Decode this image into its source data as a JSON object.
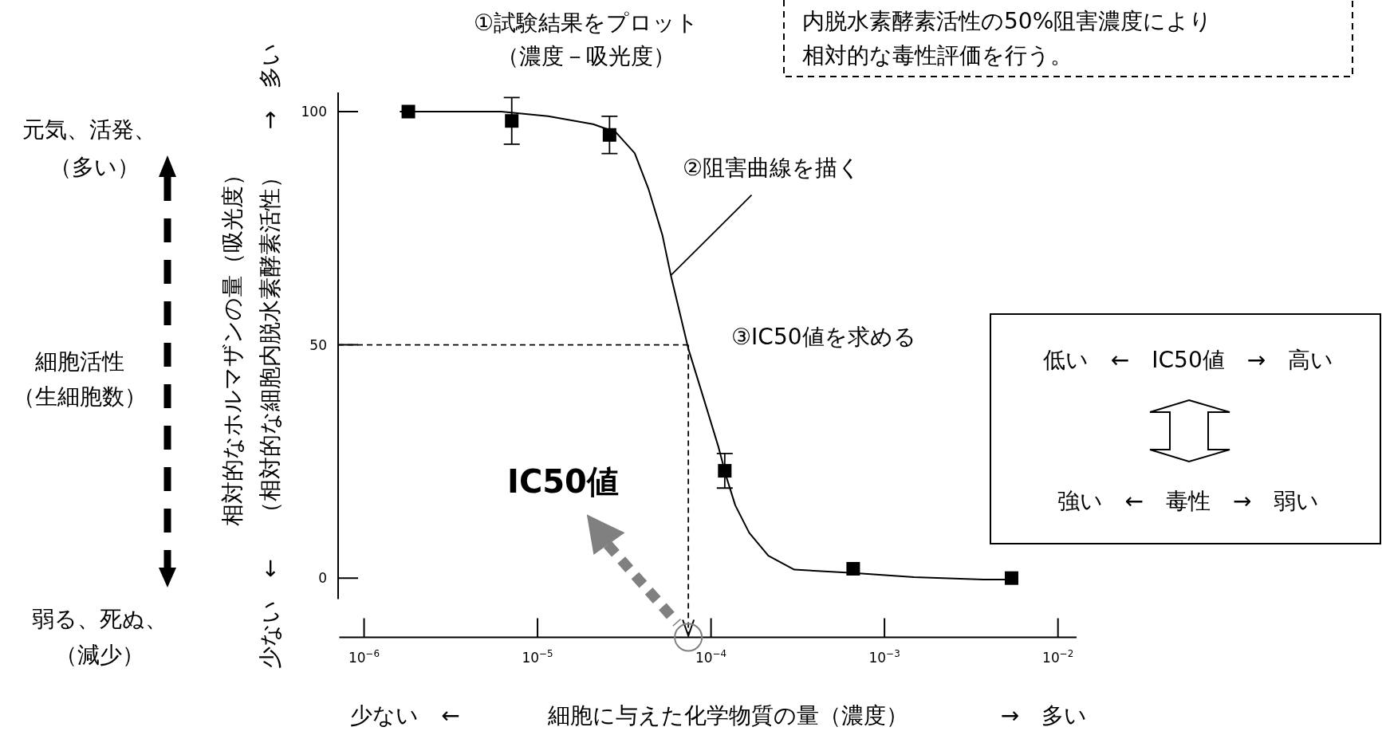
{
  "chart_data": {
    "type": "scatter",
    "xlabel": "細胞に与えた化学物質の量（濃度）",
    "ylabel": "相対的なホルマザンの量（吸光度）",
    "log": "x",
    "xlim": [
      7.2e-07,
      0.0128
    ],
    "ylim": [
      -12.7,
      104.1
    ],
    "xticks": [
      {
        "value": 1e-06,
        "label": "10$^{−6}$"
      },
      {
        "value": 1e-05,
        "label": "10$^{−5}$"
      },
      {
        "value": 0.0001,
        "label": "10$^{−4}$"
      },
      {
        "value": 0.001,
        "label": "10$^{−3}$"
      },
      {
        "value": 0.01,
        "label": "10$^{−2}$"
      }
    ],
    "yticks": [
      0,
      50,
      100
    ],
    "series": [
      {
        "color": "#000000",
        "marker": "square",
        "x": [
          1.8e-06,
          7.1e-06,
          2.6e-05,
          0.00012,
          0.00066,
          0.0054
        ],
        "values": [
          100,
          98,
          95,
          23,
          2,
          0
        ],
        "errors": [
          null,
          5,
          4,
          3.7,
          null,
          null
        ]
      },
      {
        "type": "line",
        "color": "#000000",
        "line_style": "solid",
        "x": [
          1.62e-06,
          3.39e-06,
          6.17e-06,
          1.15e-05,
          2.09e-05,
          2.82e-05,
          3.63e-05,
          4.37e-05,
          5.25e-05,
          5.89e-05,
          7.41e-05,
          9.12e-05,
          0.00011,
          0.000123,
          0.000138,
          0.000166,
          0.000214,
          0.000302,
          0.000661,
          0.00148,
          0.00372,
          0.0055
        ],
        "values": [
          100,
          100,
          100,
          99,
          97.3,
          95.6,
          91.1,
          83.3,
          73.5,
          64.6,
          49.1,
          38.2,
          28.3,
          21.5,
          15.6,
          9.7,
          4.8,
          1.8,
          1.1,
          0.2,
          -0.3,
          -0.3
        ]
      }
    ],
    "ref_lines": [
      {
        "axis": "y",
        "value": 50,
        "color": "#000000",
        "line_style": "dashed"
      },
      {
        "axis": "x",
        "value": 7.4e-05,
        "color": "#000000",
        "line_style": "dashed"
      }
    ],
    "annotations": [
      "①試験結果をプロット",
      "（濃度－吸光度）",
      "内脱水素酵素活性の50%阻害濃度により",
      "相対的な毒性評価を行う。",
      {
        "text": "②阻害曲線を描く",
        "x": 5.9e-05,
        "y": 65
      },
      "③IC50値を求める",
      "IC50値",
      "低い　←　IC50値　→　高い",
      "強い　←　毒性　→　弱い",
      "元気、活発、",
      "（多い）",
      "細胞活性",
      "（生細胞数）",
      "弱る、死ぬ、",
      "（減少）",
      "（相対的な細胞内脱水素酵素活性）",
      "→　多い",
      "少ない　←",
      "少ない　←",
      "→　多い"
    ]
  }
}
